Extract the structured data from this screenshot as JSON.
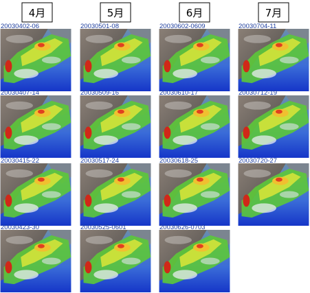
{
  "columns": [
    {
      "header": "4月",
      "items": [
        "20030402-06",
        "20030407-14",
        "20030415-22",
        "20030423-30"
      ]
    },
    {
      "header": "5月",
      "items": [
        "20030501-08",
        "20030509-16",
        "20030517-24",
        "20030525-0601"
      ]
    },
    {
      "header": "6月",
      "items": [
        "20030602-0609",
        "20030610-17",
        "20030618-25",
        "20030626-0703"
      ]
    },
    {
      "header": "7月",
      "items": [
        "20030704-11",
        "20030712-19",
        "20030720-27"
      ]
    }
  ]
}
